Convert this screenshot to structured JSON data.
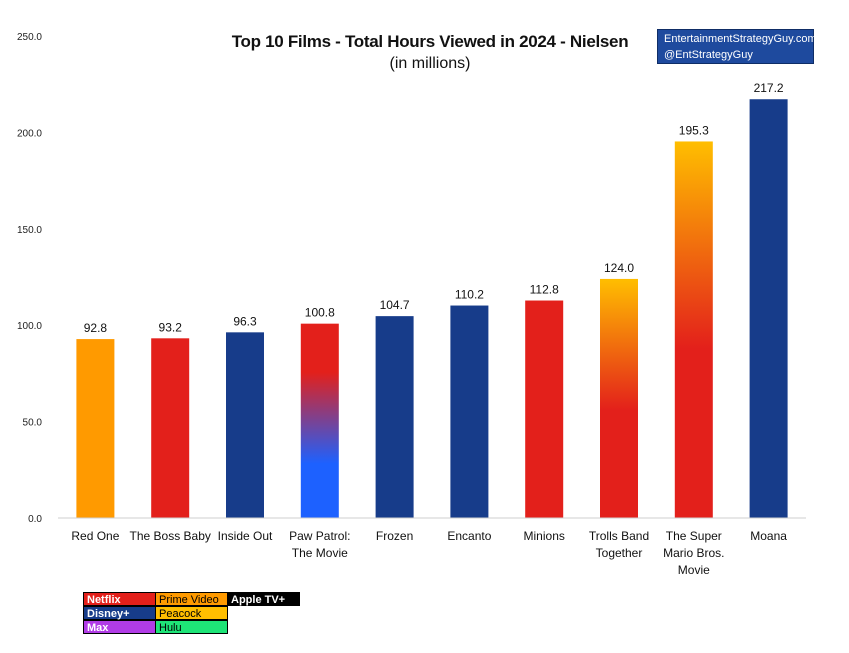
{
  "header": {
    "title": "Top 10 Films - Total Hours Viewed in 2024 - Nielsen",
    "subtitle": "(in millions)",
    "credit_line1": "EntertainmentStrategyGuy.com",
    "credit_line2": "@EntStrategyGuy"
  },
  "colors": {
    "Netflix": "#e3201b",
    "Prime Video": "#ff9a00",
    "Apple TV+": "#000000",
    "Disney+": "#173c8a",
    "Peacock": "#ffbe00",
    "Max": "#b13ce6",
    "Hulu": "#1ee477",
    "paw_blue": "#1d61ff"
  },
  "legend": {
    "netflix": "Netflix",
    "prime": "Prime Video",
    "apple": "Apple TV+",
    "disney": "Disney+",
    "peacock": "Peacock",
    "max": "Max",
    "hulu": "Hulu"
  },
  "chart_data": {
    "type": "bar",
    "title": "Top 10 Films - Total Hours Viewed in 2024 - Nielsen",
    "subtitle": "(in millions)",
    "xlabel": "",
    "ylabel": "",
    "ylim": [
      0,
      250
    ],
    "yticks": [
      0,
      50,
      100,
      150,
      200,
      250
    ],
    "ytick_labels": [
      "0.0",
      "50.0",
      "100.0",
      "150.0",
      "200.0",
      "250.0"
    ],
    "grid": false,
    "legend_position": "bottom-left",
    "categories": [
      [
        "Red One"
      ],
      [
        "The Boss Baby"
      ],
      [
        "Inside Out"
      ],
      [
        "Paw Patrol:",
        "The Movie"
      ],
      [
        "Frozen"
      ],
      [
        "Encanto"
      ],
      [
        "Minions"
      ],
      [
        "Trolls Band",
        "Together"
      ],
      [
        "The Super",
        "Mario Bros.",
        "Movie"
      ],
      [
        "Moana"
      ]
    ],
    "values": [
      92.8,
      93.2,
      96.3,
      100.8,
      104.7,
      110.2,
      112.8,
      124.0,
      195.3,
      217.2
    ],
    "value_labels": [
      "92.8",
      "93.2",
      "96.3",
      "100.8",
      "104.7",
      "110.2",
      "112.8",
      "124.0",
      "195.3",
      "217.2"
    ],
    "services": [
      [
        "Prime Video"
      ],
      [
        "Netflix"
      ],
      [
        "Disney+"
      ],
      [
        "Netflix",
        "Disney+"
      ],
      [
        "Disney+"
      ],
      [
        "Disney+"
      ],
      [
        "Netflix"
      ],
      [
        "Peacock",
        "Netflix"
      ],
      [
        "Peacock",
        "Netflix"
      ],
      [
        "Disney+"
      ]
    ]
  }
}
